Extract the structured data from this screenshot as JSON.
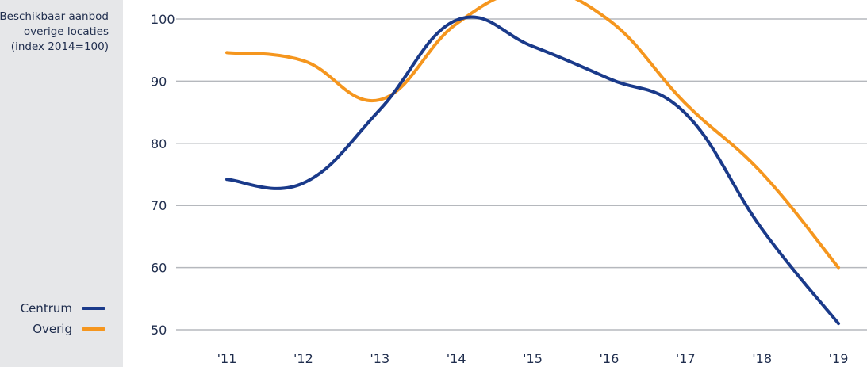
{
  "title_lines": [
    "Beschikbaar aanbod",
    "overige locaties",
    "(index 2014=100)"
  ],
  "legend": [
    {
      "label": "Centrum",
      "color": "#1a3a8a"
    },
    {
      "label": "Overig",
      "color": "#f5961e"
    }
  ],
  "chart_data": {
    "type": "line",
    "categories": [
      "'11",
      "'12",
      "'13",
      "'14",
      "'15",
      "'16",
      "'17",
      "'18",
      "'19"
    ],
    "series": [
      {
        "name": "Centrum",
        "color": "#1a3a8a",
        "values": [
          74.2,
          73.6,
          85.4,
          99.8,
          95.6,
          90.4,
          84.8,
          66.2,
          51.0
        ]
      },
      {
        "name": "Overig",
        "color": "#f5961e",
        "values": [
          94.6,
          93.3,
          87.0,
          99.2,
          104.6,
          99.8,
          86.4,
          75.2,
          60.0
        ]
      }
    ],
    "yticks": [
      50,
      60,
      70,
      80,
      90,
      100
    ],
    "ylim": [
      50,
      100
    ],
    "grid": true,
    "legend_position": "bottom-left"
  }
}
